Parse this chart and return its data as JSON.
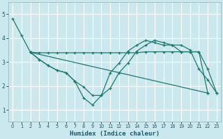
{
  "xlabel": "Humidex (Indice chaleur)",
  "background_color": "#cce8ef",
  "grid_color": "#ffffff",
  "line_color": "#1a7a6e",
  "xlim": [
    -0.5,
    23.5
  ],
  "ylim": [
    0.5,
    5.5
  ],
  "yticks": [
    1,
    2,
    3,
    4,
    5
  ],
  "xticks": [
    0,
    1,
    2,
    3,
    4,
    5,
    6,
    7,
    8,
    9,
    10,
    11,
    12,
    13,
    14,
    15,
    16,
    17,
    18,
    19,
    20,
    21,
    22,
    23
  ],
  "line1_x": [
    0,
    1,
    2,
    3,
    4,
    5,
    6,
    7,
    8,
    9,
    10,
    11,
    12,
    13,
    14,
    15,
    16,
    17,
    18,
    19,
    20,
    21,
    22,
    23
  ],
  "line1_y": [
    4.8,
    4.1,
    3.4,
    3.1,
    2.85,
    2.65,
    2.55,
    2.2,
    1.5,
    1.2,
    1.6,
    1.9,
    2.55,
    2.95,
    3.45,
    3.7,
    3.9,
    3.8,
    3.7,
    3.7,
    3.5,
    2.7,
    2.25,
    1.7
  ],
  "line2_x": [
    2,
    3,
    4,
    5,
    6,
    7,
    8,
    9,
    10,
    11,
    12,
    13,
    14,
    15,
    16,
    17,
    18,
    19,
    20,
    21,
    22
  ],
  "line2_y": [
    3.4,
    3.38,
    3.38,
    3.38,
    3.38,
    3.38,
    3.38,
    3.38,
    3.38,
    3.38,
    3.38,
    3.38,
    3.38,
    3.42,
    3.42,
    3.42,
    3.42,
    3.42,
    3.42,
    3.42,
    1.7
  ],
  "line3_x": [
    2,
    3,
    4,
    5,
    6,
    7,
    8,
    9,
    10,
    11,
    12,
    13,
    14,
    15,
    16,
    17,
    18,
    19,
    20,
    21,
    22,
    23
  ],
  "line3_y": [
    3.4,
    3.1,
    2.85,
    2.65,
    2.55,
    2.2,
    1.95,
    1.6,
    1.6,
    2.55,
    2.95,
    3.45,
    3.7,
    3.9,
    3.8,
    3.7,
    3.7,
    3.42,
    3.42,
    3.42,
    2.7,
    1.7
  ],
  "line4_x": [
    2,
    22
  ],
  "line4_y": [
    3.4,
    1.7
  ]
}
